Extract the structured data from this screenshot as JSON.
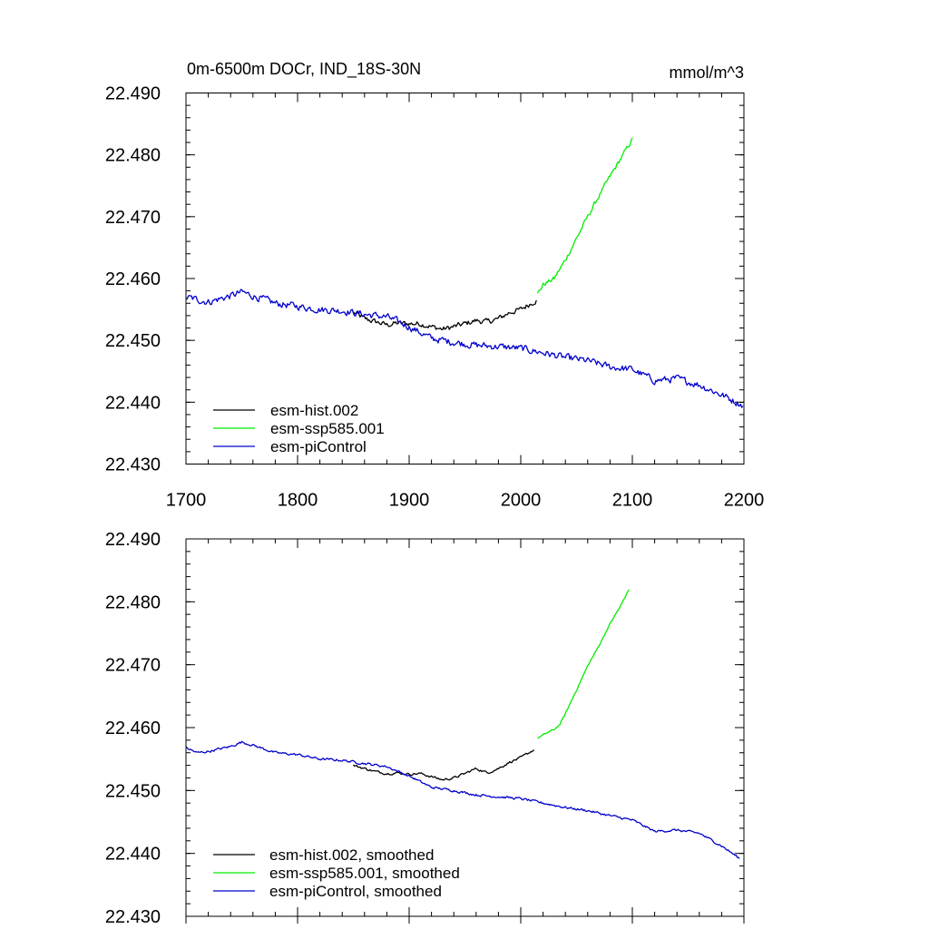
{
  "chart_data": [
    {
      "type": "line",
      "title": "0m-6500m DOCr, IND_18S-30N",
      "units": "mmol/m^3",
      "xlim": [
        1700,
        2200
      ],
      "ylim": [
        22.43,
        22.49
      ],
      "x_ticks": [
        1700,
        1800,
        1900,
        2000,
        2100,
        2200
      ],
      "x_tick_labels": [
        "1700",
        "1800",
        "1900",
        "2000",
        "2100",
        "2200"
      ],
      "y_ticks": [
        22.43,
        22.44,
        22.45,
        22.46,
        22.47,
        22.48,
        22.49
      ],
      "y_tick_labels": [
        "22.430",
        "22.440",
        "22.450",
        "22.460",
        "22.470",
        "22.480",
        "22.490"
      ],
      "legend_position": "bottom-left",
      "series": [
        {
          "name": "esm-hist.002",
          "color": "#000000",
          "x": [
            1850,
            1860,
            1870,
            1880,
            1890,
            1900,
            1910,
            1920,
            1930,
            1940,
            1950,
            1960,
            1970,
            1980,
            1990,
            2000,
            2014
          ],
          "y": [
            22.4545,
            22.4535,
            22.453,
            22.4525,
            22.4528,
            22.4527,
            22.4527,
            22.4522,
            22.4518,
            22.4522,
            22.4527,
            22.4532,
            22.453,
            22.4535,
            22.4545,
            22.455,
            22.4565
          ],
          "noise": 0.0007
        },
        {
          "name": "esm-ssp585.001",
          "color": "#00ee00",
          "x": [
            2015,
            2020,
            2030,
            2040,
            2050,
            2060,
            2070,
            2080,
            2090,
            2100
          ],
          "y": [
            22.4575,
            22.459,
            22.46,
            22.463,
            22.4665,
            22.47,
            22.4733,
            22.4765,
            22.4795,
            22.4825
          ],
          "noise": 0.0006
        },
        {
          "name": "esm-piControl",
          "color": "#0000cc",
          "x": [
            1700,
            1720,
            1740,
            1750,
            1760,
            1780,
            1800,
            1820,
            1840,
            1860,
            1880,
            1900,
            1920,
            1940,
            1960,
            1980,
            2000,
            2020,
            2040,
            2060,
            2080,
            2100,
            2120,
            2140,
            2160,
            2180,
            2199
          ],
          "y": [
            22.457,
            22.4562,
            22.4572,
            22.4578,
            22.4572,
            22.456,
            22.4555,
            22.455,
            22.4548,
            22.4542,
            22.4538,
            22.4522,
            22.4503,
            22.4497,
            22.4492,
            22.449,
            22.4487,
            22.448,
            22.4472,
            22.4467,
            22.4457,
            22.4453,
            22.4435,
            22.4438,
            22.4428,
            22.4412,
            22.4395
          ],
          "noise": 0.0009
        }
      ]
    },
    {
      "type": "line",
      "xlim": [
        1700,
        2200
      ],
      "ylim": [
        22.43,
        22.49
      ],
      "y_ticks": [
        22.43,
        22.44,
        22.45,
        22.46,
        22.47,
        22.48,
        22.49
      ],
      "y_tick_labels": [
        "22.430",
        "22.440",
        "22.450",
        "22.460",
        "22.470",
        "22.480",
        "22.490"
      ],
      "legend_position": "bottom-left",
      "series": [
        {
          "name": "esm-hist.002, smoothed",
          "color": "#000000",
          "x": [
            1850,
            1860,
            1870,
            1880,
            1890,
            1900,
            1910,
            1920,
            1930,
            1940,
            1950,
            1960,
            1970,
            1980,
            1990,
            2000,
            2012
          ],
          "y": [
            22.454,
            22.4535,
            22.453,
            22.4527,
            22.4528,
            22.4526,
            22.4527,
            22.4522,
            22.4517,
            22.452,
            22.4527,
            22.4535,
            22.4528,
            22.4535,
            22.4545,
            22.4552,
            22.4565
          ],
          "noise": 0.0003
        },
        {
          "name": "esm-ssp585.001, smoothed",
          "color": "#00ee00",
          "x": [
            2015,
            2025,
            2030,
            2035,
            2040,
            2050,
            2060,
            2070,
            2080,
            2090,
            2097
          ],
          "y": [
            22.4583,
            22.4593,
            22.4597,
            22.4605,
            22.4622,
            22.466,
            22.4698,
            22.473,
            22.4765,
            22.4795,
            22.482
          ],
          "noise": 0.0002
        },
        {
          "name": "esm-piControl, smoothed",
          "color": "#0000cc",
          "x": [
            1700,
            1710,
            1720,
            1740,
            1750,
            1760,
            1780,
            1800,
            1820,
            1840,
            1860,
            1880,
            1900,
            1920,
            1940,
            1960,
            1980,
            2000,
            2020,
            2040,
            2060,
            2080,
            2100,
            2120,
            2140,
            2160,
            2180,
            2196
          ],
          "y": [
            22.4568,
            22.456,
            22.4562,
            22.457,
            22.4577,
            22.4572,
            22.456,
            22.4557,
            22.455,
            22.4548,
            22.4543,
            22.4538,
            22.4523,
            22.4505,
            22.45,
            22.4493,
            22.449,
            22.4487,
            22.448,
            22.4473,
            22.4468,
            22.446,
            22.4453,
            22.4435,
            22.4437,
            22.4432,
            22.4412,
            22.4392
          ],
          "noise": 0.0003
        }
      ]
    }
  ]
}
